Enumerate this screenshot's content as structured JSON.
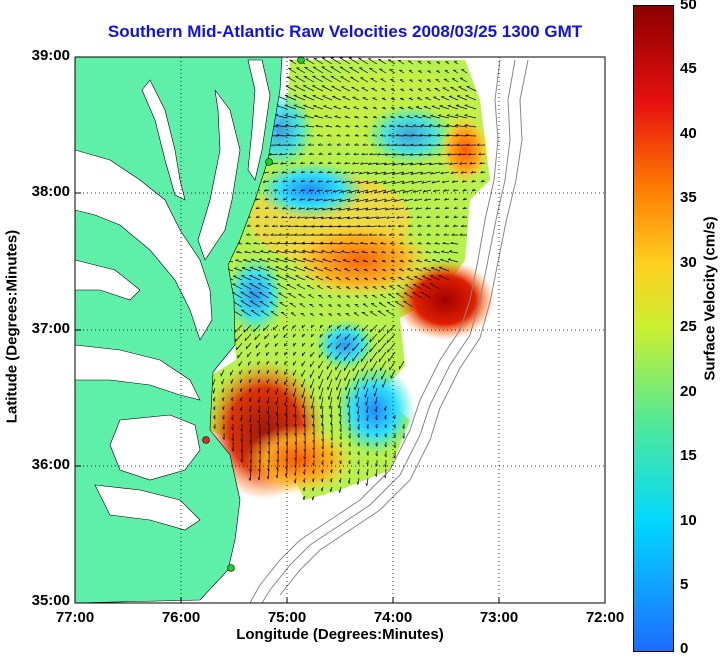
{
  "title": "Southern Mid-Atlantic Raw Velocities 2008/03/25 1300 GMT",
  "axes": {
    "xlabel": "Longitude (Degrees:Minutes)",
    "ylabel": "Latitude (Degrees:Minutes)",
    "xticks": [
      "77:00",
      "76:00",
      "75:00",
      "74:00",
      "73:00",
      "72:00"
    ],
    "yticks": [
      "39:00",
      "38:00",
      "37:00",
      "36:00",
      "35:00"
    ]
  },
  "colorbar": {
    "label": "Surface Velocity (cm/s)",
    "ticks": [
      "50",
      "45",
      "40",
      "35",
      "30",
      "25",
      "20",
      "15",
      "10",
      "5",
      "0"
    ],
    "range": [
      0,
      50
    ]
  },
  "colors": {
    "land": "#5ef0a8",
    "title": "#1010ee",
    "site_active": "#22cc22",
    "site_alert": "#ee2222"
  }
}
